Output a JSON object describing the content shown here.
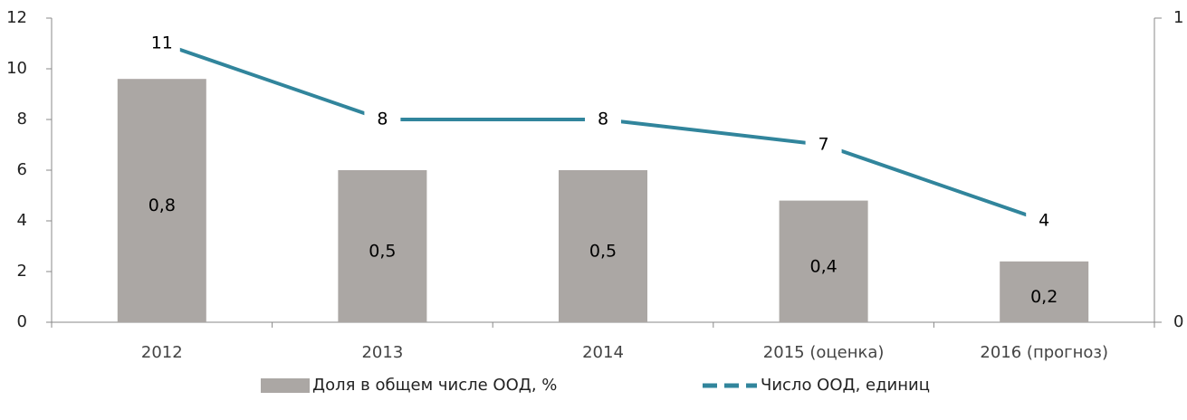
{
  "chart_data": {
    "type": "bar",
    "categories": [
      "2012",
      "2013",
      "2014",
      "2015 (оценка)",
      "2016 (прогноз)"
    ],
    "series": [
      {
        "name": "Доля в общем числе ООД, %",
        "type": "bar",
        "axis": "y2",
        "color": "#aba7a4",
        "values": [
          0.8,
          0.5,
          0.5,
          0.4,
          0.2
        ],
        "value_labels": [
          "0,8",
          "0,5",
          "0,5",
          "0,4",
          "0,2"
        ]
      },
      {
        "name": "Число ООД, единиц",
        "type": "line",
        "color": "#31859c",
        "values": [
          11,
          8,
          8,
          7,
          4
        ]
      }
    ],
    "ylim": [
      0,
      12
    ],
    "yticks": [
      0,
      2,
      4,
      6,
      8,
      10,
      12
    ],
    "y2lim": [
      0,
      1
    ],
    "y2ticks": [
      0,
      1
    ],
    "legend": "bottom"
  }
}
